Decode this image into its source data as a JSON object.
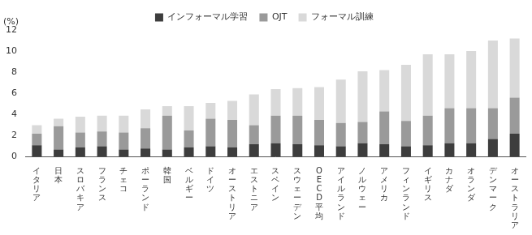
{
  "chart_data": {
    "type": "bar",
    "stacked": true,
    "grid": false,
    "legend": "top",
    "y_label": "(%)",
    "categories": [
      "イタリア",
      "日本",
      "スロバキア",
      "フランス",
      "チェコ",
      "ポーランド",
      "韓国",
      "ベルギー",
      "ドイツ",
      "オーストリア",
      "エストニア",
      "スペイン",
      "スウェーデン",
      "OECD平均",
      "アイルランド",
      "ノルウェー",
      "アメリカ",
      "フィンランド",
      "イギリス",
      "カナダ",
      "オランダ",
      "デンマーク",
      "オーストラリア"
    ],
    "series": [
      {
        "name": "インフォーマル学習",
        "color": "#3d3d3d",
        "values": [
          1.1,
          0.7,
          0.9,
          1.0,
          0.7,
          0.8,
          0.7,
          0.9,
          1.0,
          0.9,
          1.2,
          1.3,
          1.2,
          1.1,
          1.0,
          1.3,
          1.2,
          1.0,
          1.1,
          1.3,
          1.3,
          1.7,
          2.2
        ]
      },
      {
        "name": "OJT",
        "color": "#9a9a9a",
        "values": [
          1.1,
          2.2,
          1.4,
          1.4,
          1.6,
          1.9,
          3.2,
          1.6,
          2.6,
          2.6,
          1.8,
          2.6,
          2.7,
          2.4,
          2.2,
          2.0,
          3.1,
          2.4,
          2.8,
          3.3,
          3.3,
          2.9,
          3.4
        ]
      },
      {
        "name": "フォーマル訓練",
        "color": "#d9d9d9",
        "values": [
          0.8,
          0.7,
          1.5,
          1.5,
          1.6,
          1.8,
          0.9,
          2.3,
          1.5,
          1.8,
          2.9,
          2.5,
          2.6,
          3.1,
          4.1,
          4.8,
          3.9,
          5.3,
          5.8,
          5.1,
          5.4,
          6.4,
          5.6
        ]
      }
    ],
    "ylim": [
      0,
      12
    ],
    "yticks": [
      0,
      2,
      4,
      6,
      8,
      10,
      12
    ]
  }
}
